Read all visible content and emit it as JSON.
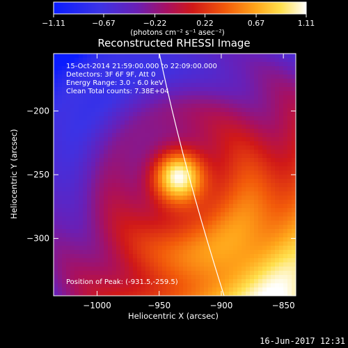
{
  "chart_data": {
    "type": "heatmap",
    "title": "Reconstructed RHESSI Image",
    "xlabel": "Heliocentric X (arcsec)",
    "ylabel": "Heliocentric Y (arcsec)",
    "xlim": [
      -1035,
      -840
    ],
    "ylim": [
      -345,
      -155
    ],
    "x_ticks": [
      -1000,
      -950,
      -900,
      -850
    ],
    "x_tick_labels": [
      "−1000",
      "−950",
      "−900",
      "−850"
    ],
    "y_ticks": [
      -200,
      -250,
      -300
    ],
    "y_tick_labels": [
      "−200",
      "−250",
      "−300"
    ],
    "colorbar": {
      "range": [
        -1.11,
        1.11
      ],
      "tick_values": [
        -1.11,
        -0.67,
        -0.22,
        0.22,
        0.67,
        1.11
      ],
      "tick_labels": [
        "−1.11",
        "−0.67",
        "−0.22",
        "0.22",
        "0.67",
        "1.11"
      ],
      "unit_label": "(photons cm⁻² s⁻¹ asec⁻²)",
      "colormap": "blue-purple-red-orange-yellow-white"
    },
    "annotations": [
      "15-Oct-2014 21:59:00.000 to 22:09:00.000",
      "Detectors: 3F 6F 9F, Att 0",
      "Energy Range: 3.0 - 6.0 keV",
      "Clean     Total counts: 7.38E+04"
    ],
    "peak_label": "Position of Peak: (-931.5,-259.5)",
    "features": {
      "limb_arc": "solar limb curve running from top-center to lower-right",
      "bright_source_center": [
        -935,
        -250
      ]
    },
    "timestamp": "16-Jun-2017 12:31"
  }
}
